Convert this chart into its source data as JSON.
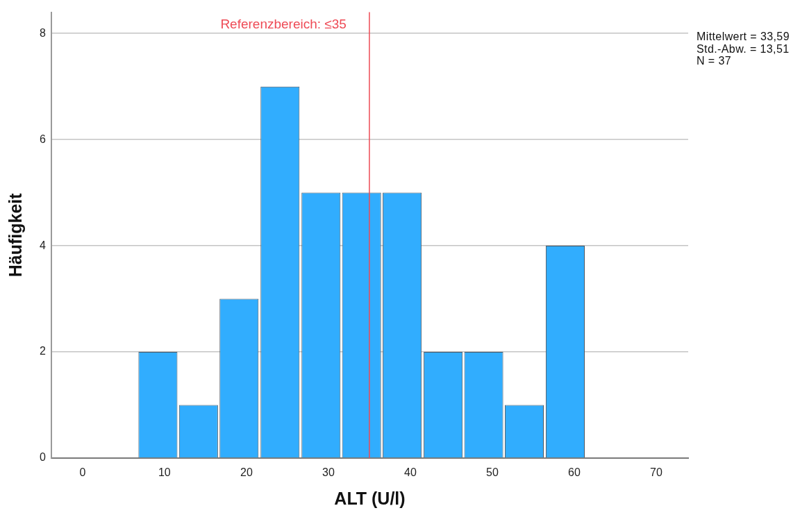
{
  "chart_data": {
    "type": "histogram",
    "xlabel": "ALT (U/l)",
    "ylabel": "Häufigkeit",
    "bins": [
      6.7,
      11.7,
      16.6,
      21.6,
      26.6,
      31.6,
      36.5,
      41.5,
      46.5,
      51.4,
      56.4,
      61.4
    ],
    "values": [
      2,
      1,
      3,
      7,
      5,
      5,
      5,
      2,
      2,
      1,
      4
    ],
    "color": "#31adfe",
    "xlim": [
      -3.8,
      73.9
    ],
    "ylim": [
      0,
      8.4
    ],
    "xticks": [
      0,
      10,
      20,
      30,
      40,
      50,
      60,
      70
    ],
    "yticks": [
      0,
      2,
      4,
      6,
      8
    ],
    "grid": "y",
    "ref_lines": [
      {
        "axis": "x",
        "value": 35,
        "label": "Referenzbereich: ≤35",
        "color": "#ee4a55"
      }
    ],
    "annotations": [
      "Mittelwert = 33,59",
      "Std.-Abw. = 13,51",
      "N = 37"
    ]
  }
}
